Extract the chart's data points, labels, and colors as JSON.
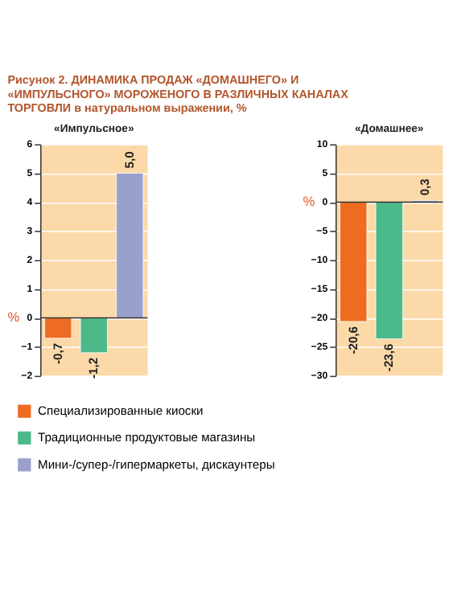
{
  "chart_data": [
    {
      "type": "bar",
      "title": "«Импульсное»",
      "ylabel": "%",
      "annotations": [
        "Рисунок 2.",
        "ДИНАМИКА ПРОДАЖ «ДОМАШНЕГО» И «ИМПУЛЬСНОГО» МОРОЖЕНОГО В РАЗЛИЧНЫХ КАНАЛАХ ТОРГОВЛИ",
        "в натуральном выражении, %"
      ],
      "categories": [
        null
      ],
      "ylim": [
        -2,
        6
      ],
      "yticks": [
        -2,
        -1,
        0,
        1,
        2,
        3,
        4,
        5,
        6
      ],
      "grid": "y",
      "legend": "bottom",
      "series": [
        {
          "name": "Специализированные киоски",
          "color": "#ee6c22",
          "values": [
            -0.7
          ],
          "value_labels": [
            "-0,7"
          ]
        },
        {
          "name": "Традиционные продуктовые магазины",
          "color": "#4cb98a",
          "values": [
            -1.2
          ],
          "value_labels": [
            "-1,2"
          ]
        },
        {
          "name": "Мини-/супер-/гипермаркеты, дискаунтеры",
          "color": "#9aa0cc",
          "values": [
            5.0
          ],
          "value_labels": [
            "5,0"
          ]
        }
      ]
    },
    {
      "type": "bar",
      "title": "«Домашнее»",
      "ylabel": "%",
      "categories": [
        null
      ],
      "ylim": [
        -30,
        10
      ],
      "yticks": [
        -30,
        -25,
        -20,
        -15,
        -10,
        -5,
        0,
        5,
        10
      ],
      "grid": "y",
      "series": [
        {
          "color": "#ee6c22",
          "values": [
            -20.6
          ],
          "value_labels": [
            "-20,6"
          ]
        },
        {
          "color": "#4cb98a",
          "values": [
            -23.6
          ],
          "value_labels": [
            "-23,6"
          ]
        },
        {
          "color": "#9aa0cc",
          "values": [
            0.3
          ],
          "value_labels": [
            "0,3"
          ]
        }
      ]
    }
  ]
}
